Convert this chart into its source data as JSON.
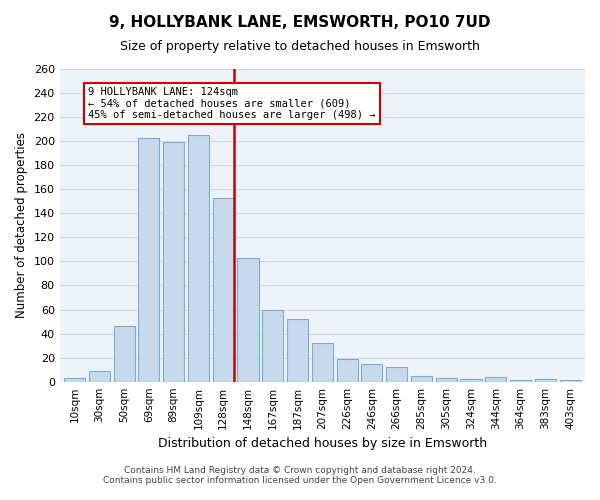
{
  "title": "9, HOLLYBANK LANE, EMSWORTH, PO10 7UD",
  "subtitle": "Size of property relative to detached houses in Emsworth",
  "xlabel": "Distribution of detached houses by size in Emsworth",
  "ylabel": "Number of detached properties",
  "bar_labels": [
    "10sqm",
    "30sqm",
    "50sqm",
    "69sqm",
    "89sqm",
    "109sqm",
    "128sqm",
    "148sqm",
    "167sqm",
    "187sqm",
    "207sqm",
    "226sqm",
    "246sqm",
    "266sqm",
    "285sqm",
    "305sqm",
    "324sqm",
    "344sqm",
    "364sqm",
    "383sqm",
    "403sqm"
  ],
  "bar_values": [
    3,
    9,
    46,
    203,
    199,
    205,
    153,
    103,
    60,
    52,
    32,
    19,
    15,
    12,
    5,
    3,
    2,
    4,
    1,
    2,
    1
  ],
  "bar_color": "#c7d9ed",
  "bar_edge_color": "#7aadd4",
  "highlight_index": 6,
  "highlight_line_color": "#cc0000",
  "annotation_title": "9 HOLLYBANK LANE: 124sqm",
  "annotation_line1": "← 54% of detached houses are smaller (609)",
  "annotation_line2": "45% of semi-detached houses are larger (498) →",
  "annotation_box_color": "#ffffff",
  "annotation_box_edge": "#cc0000",
  "ylim": [
    0,
    260
  ],
  "yticks": [
    0,
    20,
    40,
    60,
    80,
    100,
    120,
    140,
    160,
    180,
    200,
    220,
    240,
    260
  ],
  "background_color": "#ffffff",
  "grid_color": "#d0d8e8",
  "footer_line1": "Contains HM Land Registry data © Crown copyright and database right 2024.",
  "footer_line2": "Contains public sector information licensed under the Open Government Licence v3.0."
}
